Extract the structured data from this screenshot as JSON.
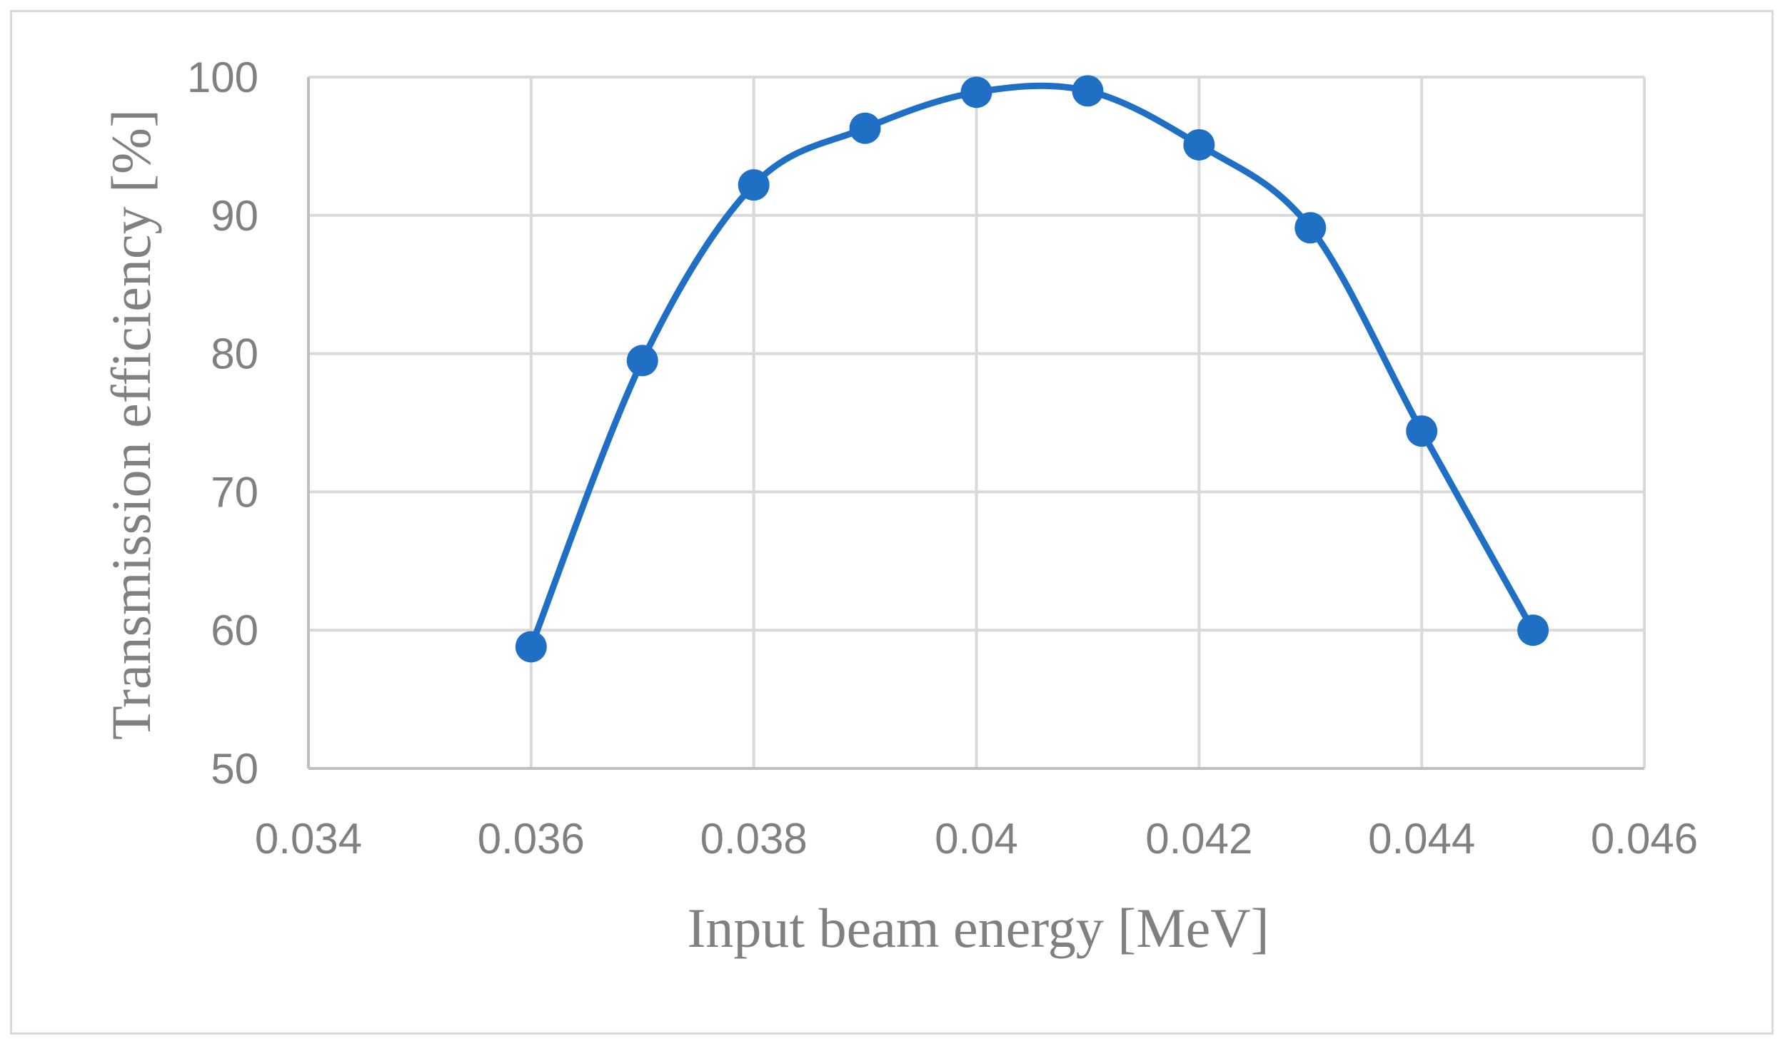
{
  "chart_data": {
    "type": "line",
    "title": "",
    "xlabel": "Input beam energy [MeV]",
    "ylabel": "Transmission efficiency [%]",
    "xlim": [
      0.034,
      0.046
    ],
    "ylim": [
      50,
      100
    ],
    "x_ticks": [
      0.034,
      0.036,
      0.038,
      0.04,
      0.042,
      0.044,
      0.046
    ],
    "x_tick_labels": [
      "0.034",
      "0.036",
      "0.038",
      "0.04",
      "0.042",
      "0.044",
      "0.046"
    ],
    "y_ticks": [
      50,
      60,
      70,
      80,
      90,
      100
    ],
    "y_tick_labels": [
      "50",
      "60",
      "70",
      "80",
      "90",
      "100"
    ],
    "grid": true,
    "smooth": true,
    "series": [
      {
        "name": "Transmission efficiency",
        "color": "#1f6fc5",
        "x": [
          0.036,
          0.037,
          0.038,
          0.039,
          0.04,
          0.041,
          0.042,
          0.043,
          0.044,
          0.045
        ],
        "y": [
          58.8,
          79.5,
          92.2,
          96.3,
          98.9,
          99.0,
          95.1,
          89.1,
          74.4,
          60.0
        ]
      }
    ]
  }
}
